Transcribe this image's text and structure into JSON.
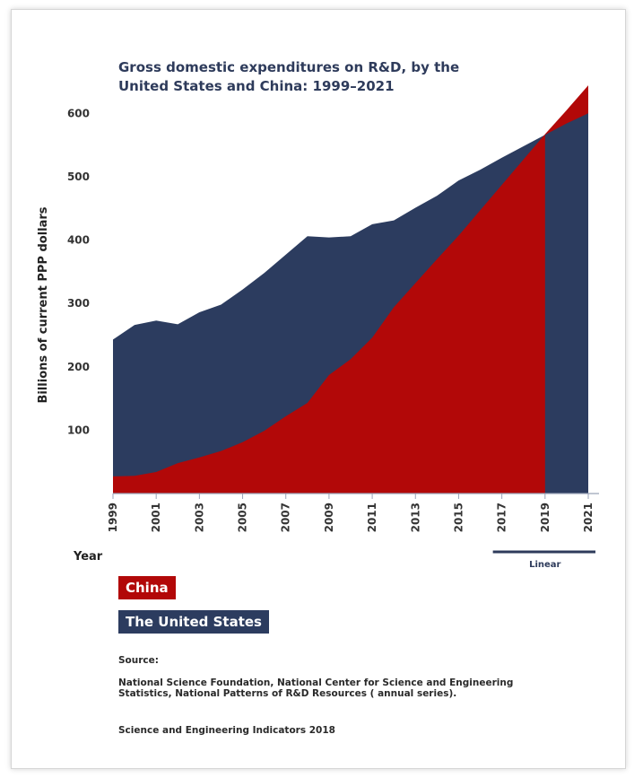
{
  "chart_data": {
    "type": "area",
    "title_lines": [
      "Gross domestic expenditures on R&D, by the",
      "United States and China: 1999–2021"
    ],
    "ylabel": "Billions of current PPP dollars",
    "xlabel": "Year",
    "ylim": [
      0,
      640
    ],
    "yticks": [
      100,
      200,
      300,
      400,
      500,
      600
    ],
    "xlim": [
      1999,
      2021
    ],
    "xticks": [
      1999,
      2001,
      2003,
      2005,
      2007,
      2009,
      2011,
      2013,
      2015,
      2017,
      2019,
      2021
    ],
    "x": [
      1999,
      2000,
      2001,
      2002,
      2003,
      2004,
      2005,
      2006,
      2007,
      2008,
      2009,
      2010,
      2011,
      2012,
      2013,
      2014,
      2015,
      2016,
      2017,
      2018,
      2019,
      2020,
      2021
    ],
    "series": [
      {
        "name": "China",
        "color": "#b20808",
        "values": [
          27,
          28,
          34,
          48,
          57,
          67,
          81,
          99,
          122,
          143,
          187,
          212,
          246,
          294,
          332,
          370,
          407,
          447,
          487,
          527,
          567,
          605,
          644
        ]
      },
      {
        "name": "The United States",
        "color": "#2c3c5f",
        "values": [
          243,
          266,
          273,
          267,
          286,
          298,
          322,
          348,
          377,
          406,
          404,
          406,
          425,
          431,
          451,
          470,
          494,
          511,
          530,
          548,
          566,
          584,
          600
        ]
      }
    ],
    "annotation": {
      "label": "Linear",
      "from": 2017,
      "to": 2021
    }
  },
  "legend": {
    "china": "China",
    "us": "The United States"
  },
  "source": {
    "label": "Source:",
    "text": "National Science Foundation, National Center for Science and Engineering Statistics, National Patterns of R&D Resources ( annual series).",
    "note": "Science and Engineering Indicators 2018"
  }
}
